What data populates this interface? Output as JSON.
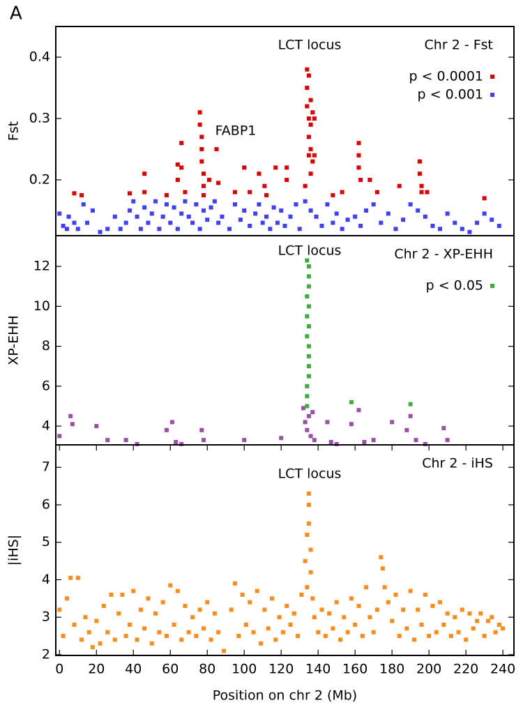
{
  "panel_label": "A",
  "chart_data": [
    {
      "type": "scatter",
      "title": "Chr 2 - Fst",
      "annotations": [
        "LCT locus",
        "FABP1"
      ],
      "ylabel": "Fst",
      "xlim": [
        -2,
        246
      ],
      "ylim": [
        0.109,
        0.45
      ],
      "yticks": [
        0.2,
        0.3,
        0.4
      ],
      "series": [
        {
          "name": "p < 0.0001",
          "color": "#e00000",
          "x": [
            8,
            12,
            38,
            46,
            46,
            58,
            64,
            64,
            66,
            66,
            68,
            76,
            76,
            77,
            77,
            77,
            78,
            78,
            78,
            81,
            85,
            86,
            95,
            100,
            103,
            108,
            111,
            112,
            117,
            123,
            123,
            133,
            134,
            134,
            134,
            135,
            135,
            135,
            135,
            136,
            136,
            136,
            136,
            137,
            137,
            138,
            138,
            148,
            153,
            162,
            162,
            162,
            163,
            168,
            172,
            184,
            195,
            195,
            196,
            196,
            199,
            230
          ],
          "values": [
            0.178,
            0.175,
            0.178,
            0.21,
            0.18,
            0.175,
            0.225,
            0.2,
            0.26,
            0.22,
            0.18,
            0.31,
            0.29,
            0.27,
            0.25,
            0.23,
            0.21,
            0.19,
            0.175,
            0.2,
            0.25,
            0.195,
            0.18,
            0.22,
            0.18,
            0.21,
            0.19,
            0.175,
            0.22,
            0.22,
            0.2,
            0.19,
            0.38,
            0.35,
            0.32,
            0.37,
            0.3,
            0.27,
            0.24,
            0.33,
            0.29,
            0.25,
            0.21,
            0.31,
            0.23,
            0.3,
            0.24,
            0.175,
            0.18,
            0.26,
            0.24,
            0.22,
            0.2,
            0.2,
            0.18,
            0.19,
            0.23,
            0.21,
            0.19,
            0.18,
            0.18,
            0.17
          ]
        },
        {
          "name": "p < 0.001",
          "color": "#3f3fff",
          "x": [
            0,
            2,
            4,
            5,
            8,
            10,
            13,
            15,
            18,
            22,
            26,
            30,
            33,
            36,
            38,
            40,
            42,
            44,
            46,
            48,
            50,
            52,
            54,
            56,
            58,
            60,
            62,
            64,
            66,
            68,
            70,
            72,
            74,
            76,
            78,
            80,
            82,
            84,
            86,
            88,
            92,
            95,
            98,
            100,
            103,
            106,
            108,
            110,
            112,
            114,
            116,
            118,
            120,
            122,
            125,
            128,
            130,
            133,
            136,
            139,
            142,
            145,
            148,
            150,
            153,
            156,
            160,
            163,
            166,
            170,
            174,
            178,
            182,
            186,
            190,
            194,
            198,
            202,
            206,
            210,
            214,
            218,
            222,
            226,
            230,
            234,
            238
          ],
          "values": [
            0.145,
            0.125,
            0.12,
            0.14,
            0.13,
            0.12,
            0.16,
            0.13,
            0.15,
            0.115,
            0.12,
            0.14,
            0.12,
            0.13,
            0.15,
            0.165,
            0.14,
            0.12,
            0.155,
            0.13,
            0.145,
            0.165,
            0.12,
            0.14,
            0.16,
            0.13,
            0.155,
            0.12,
            0.145,
            0.165,
            0.14,
            0.13,
            0.16,
            0.12,
            0.15,
            0.135,
            0.155,
            0.165,
            0.13,
            0.14,
            0.12,
            0.16,
            0.135,
            0.15,
            0.125,
            0.145,
            0.16,
            0.13,
            0.14,
            0.12,
            0.155,
            0.13,
            0.15,
            0.125,
            0.14,
            0.16,
            0.12,
            0.165,
            0.15,
            0.14,
            0.125,
            0.16,
            0.13,
            0.145,
            0.12,
            0.135,
            0.14,
            0.125,
            0.15,
            0.16,
            0.13,
            0.145,
            0.12,
            0.135,
            0.16,
            0.15,
            0.14,
            0.125,
            0.12,
            0.145,
            0.13,
            0.12,
            0.115,
            0.13,
            0.145,
            0.135,
            0.125
          ]
        }
      ]
    },
    {
      "type": "scatter",
      "title": "Chr 2 - XP-EHH",
      "annotations": [
        "LCT locus"
      ],
      "ylabel": "XP-EHH",
      "xlim": [
        -2,
        246
      ],
      "ylim": [
        3.06,
        13.54
      ],
      "yticks": [
        4,
        6,
        8,
        10,
        12
      ],
      "series": [
        {
          "name": "p < 0.05",
          "color": "#3cae3c",
          "x": [
            134,
            134,
            134,
            135,
            135,
            135,
            135,
            134,
            135,
            134,
            135,
            134,
            135,
            135,
            135,
            134,
            158,
            190
          ],
          "values": [
            5.0,
            5.5,
            6.0,
            6.5,
            7.0,
            7.5,
            8.0,
            8.5,
            9.0,
            9.5,
            10.0,
            10.5,
            11.0,
            11.5,
            12.0,
            12.3,
            5.2,
            5.1
          ]
        },
        {
          "color": "#9b4fa8",
          "x": [
            0,
            6,
            7,
            20,
            26,
            36,
            42,
            58,
            61,
            63,
            66,
            77,
            78,
            100,
            120,
            132,
            133,
            134,
            135,
            136,
            137,
            138,
            145,
            147,
            150,
            158,
            162,
            165,
            170,
            180,
            188,
            190,
            193,
            198,
            208,
            210
          ],
          "values": [
            3.5,
            4.5,
            4.1,
            4.0,
            3.3,
            3.3,
            3.1,
            3.8,
            4.2,
            3.2,
            3.1,
            3.8,
            3.3,
            3.3,
            3.4,
            4.9,
            4.2,
            3.8,
            4.5,
            3.5,
            4.7,
            3.3,
            4.2,
            3.2,
            3.1,
            4.1,
            4.8,
            3.2,
            3.3,
            4.2,
            3.8,
            4.5,
            3.3,
            3.1,
            3.9,
            3.3
          ]
        }
      ]
    },
    {
      "type": "scatter",
      "title": "Chr 2 - iHS",
      "annotations": [
        "LCT locus"
      ],
      "ylabel": "|iHS|",
      "xlabel": "Position on chr 2 (Mb)",
      "xlim": [
        -2,
        246
      ],
      "xticks": [
        0,
        20,
        40,
        60,
        80,
        100,
        120,
        140,
        160,
        180,
        200,
        220,
        240
      ],
      "ylim": [
        1.98,
        7.6
      ],
      "yticks": [
        2,
        3,
        4,
        5,
        6,
        7
      ],
      "series": [
        {
          "color": "#ff8c1a",
          "x": [
            0,
            2,
            4,
            6,
            8,
            10,
            12,
            14,
            16,
            18,
            20,
            22,
            24,
            26,
            28,
            30,
            32,
            34,
            36,
            38,
            40,
            42,
            44,
            46,
            48,
            50,
            52,
            54,
            56,
            58,
            60,
            62,
            64,
            66,
            68,
            70,
            72,
            74,
            76,
            78,
            80,
            82,
            84,
            86,
            89,
            93,
            95,
            97,
            99,
            101,
            103,
            105,
            107,
            109,
            111,
            113,
            115,
            117,
            119,
            121,
            123,
            125,
            127,
            129,
            131,
            133,
            134,
            134,
            135,
            135,
            135,
            136,
            136,
            137,
            138,
            140,
            142,
            144,
            146,
            148,
            150,
            152,
            154,
            156,
            158,
            160,
            162,
            164,
            166,
            168,
            170,
            172,
            174,
            175,
            176,
            178,
            180,
            182,
            184,
            186,
            188,
            190,
            192,
            194,
            196,
            198,
            200,
            202,
            204,
            206,
            208,
            210,
            212,
            214,
            216,
            218,
            220,
            222,
            224,
            226,
            228,
            230,
            232,
            234,
            236,
            238,
            240
          ],
          "values": [
            3.2,
            2.5,
            3.5,
            4.05,
            2.8,
            4.05,
            2.4,
            3.0,
            2.6,
            2.2,
            2.9,
            2.3,
            3.3,
            2.6,
            3.6,
            2.4,
            3.1,
            3.6,
            2.5,
            2.8,
            3.7,
            2.4,
            3.2,
            2.7,
            3.5,
            2.3,
            3.1,
            2.6,
            3.4,
            2.5,
            3.85,
            2.8,
            3.7,
            2.4,
            3.3,
            2.6,
            3.0,
            2.5,
            3.2,
            2.7,
            3.4,
            2.4,
            3.1,
            2.6,
            2.1,
            3.2,
            3.9,
            2.5,
            3.6,
            2.8,
            3.4,
            2.6,
            3.7,
            2.3,
            3.2,
            2.7,
            3.5,
            2.4,
            3.0,
            2.6,
            3.3,
            2.8,
            3.1,
            2.5,
            3.6,
            4.5,
            5.2,
            3.8,
            6.3,
            6.0,
            5.5,
            4.8,
            4.2,
            3.5,
            3.0,
            2.6,
            3.2,
            2.5,
            3.1,
            2.7,
            3.4,
            2.4,
            3.0,
            2.6,
            3.5,
            2.8,
            3.3,
            2.5,
            3.8,
            3.0,
            2.6,
            3.2,
            4.6,
            4.3,
            3.8,
            3.4,
            2.9,
            3.6,
            2.5,
            3.2,
            2.7,
            3.7,
            2.4,
            3.2,
            2.8,
            3.6,
            2.5,
            3.3,
            2.6,
            3.4,
            2.8,
            3.1,
            2.5,
            3.0,
            2.6,
            3.2,
            2.4,
            3.1,
            2.7,
            2.9,
            3.1,
            2.5,
            2.9,
            3.0,
            2.6,
            2.8,
            2.7
          ]
        }
      ]
    }
  ]
}
